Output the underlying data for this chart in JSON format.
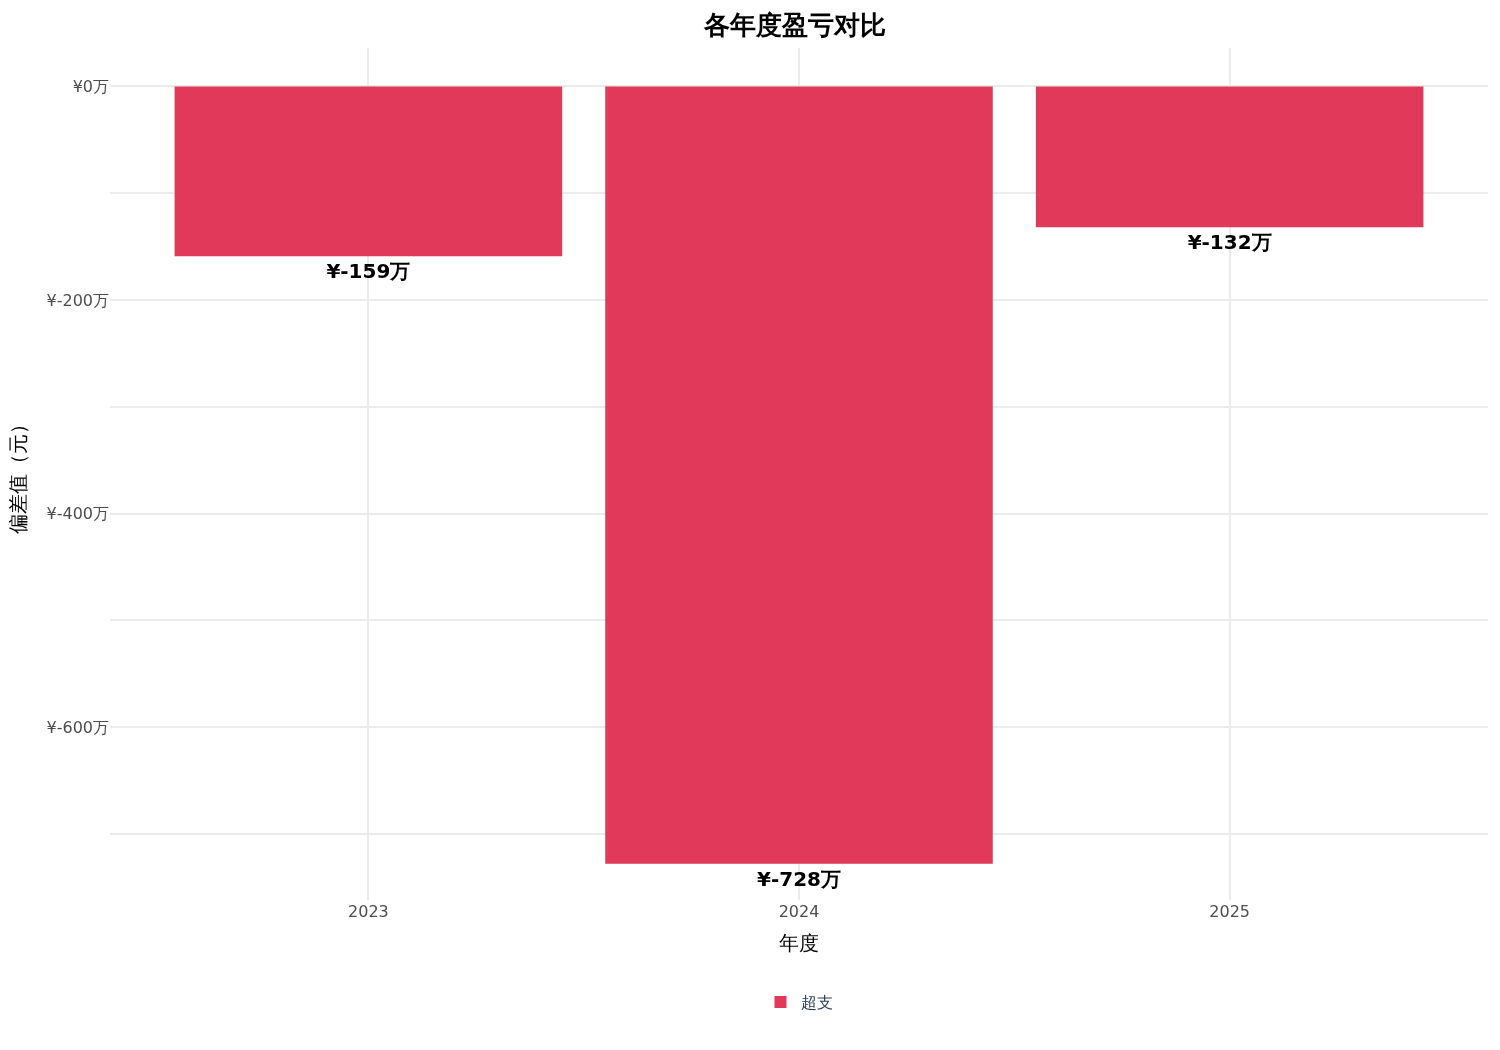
{
  "chart_data": {
    "type": "bar",
    "title": "各年度盈亏对比",
    "xlabel": "年度",
    "ylabel": "偏差值（元）",
    "categories": [
      "2023",
      "2024",
      "2025"
    ],
    "series": [
      {
        "name": "超支",
        "color": "#e0395a",
        "values": [
          -159,
          -728,
          -132
        ],
        "value_labels": [
          "¥-159万",
          "¥-728万",
          "¥-132万"
        ]
      }
    ],
    "ylim": [
      -762,
      36
    ],
    "yticks": [
      {
        "value": 0,
        "label": "¥0万"
      },
      {
        "value": -100,
        "label": null
      },
      {
        "value": -200,
        "label": "¥-200万"
      },
      {
        "value": -300,
        "label": null
      },
      {
        "value": -400,
        "label": "¥-400万"
      },
      {
        "value": -500,
        "label": null
      },
      {
        "value": -600,
        "label": "¥-600万"
      },
      {
        "value": -700,
        "label": null
      }
    ],
    "grid": true,
    "legend": "bottom"
  }
}
